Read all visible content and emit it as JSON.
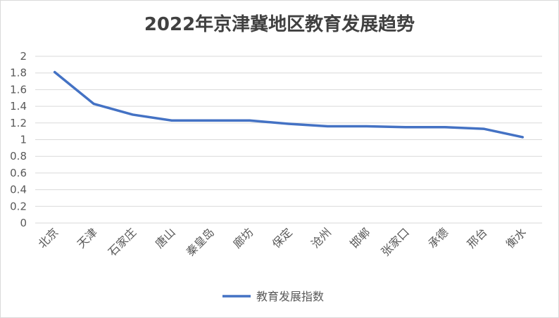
{
  "chart_data": {
    "type": "line",
    "title": "2022年京津冀地区教育发展趋势",
    "categories": [
      "北京",
      "天津",
      "石家庄",
      "唐山",
      "秦皇岛",
      "廊坊",
      "保定",
      "沧州",
      "邯郸",
      "张家口",
      "承德",
      "邢台",
      "衡水"
    ],
    "series": [
      {
        "name": "教育发展指数",
        "color": "#4472c4",
        "values": [
          1.81,
          1.43,
          1.3,
          1.23,
          1.23,
          1.23,
          1.19,
          1.16,
          1.16,
          1.15,
          1.15,
          1.13,
          1.03
        ]
      }
    ],
    "ylim": [
      0,
      2
    ],
    "yticks": [
      "2",
      "1.8",
      "1.6",
      "1.4",
      "1.2",
      "1",
      "0.8",
      "0.6",
      "0.4",
      "0.2",
      "0"
    ],
    "grid": true,
    "legend": "bottom"
  }
}
